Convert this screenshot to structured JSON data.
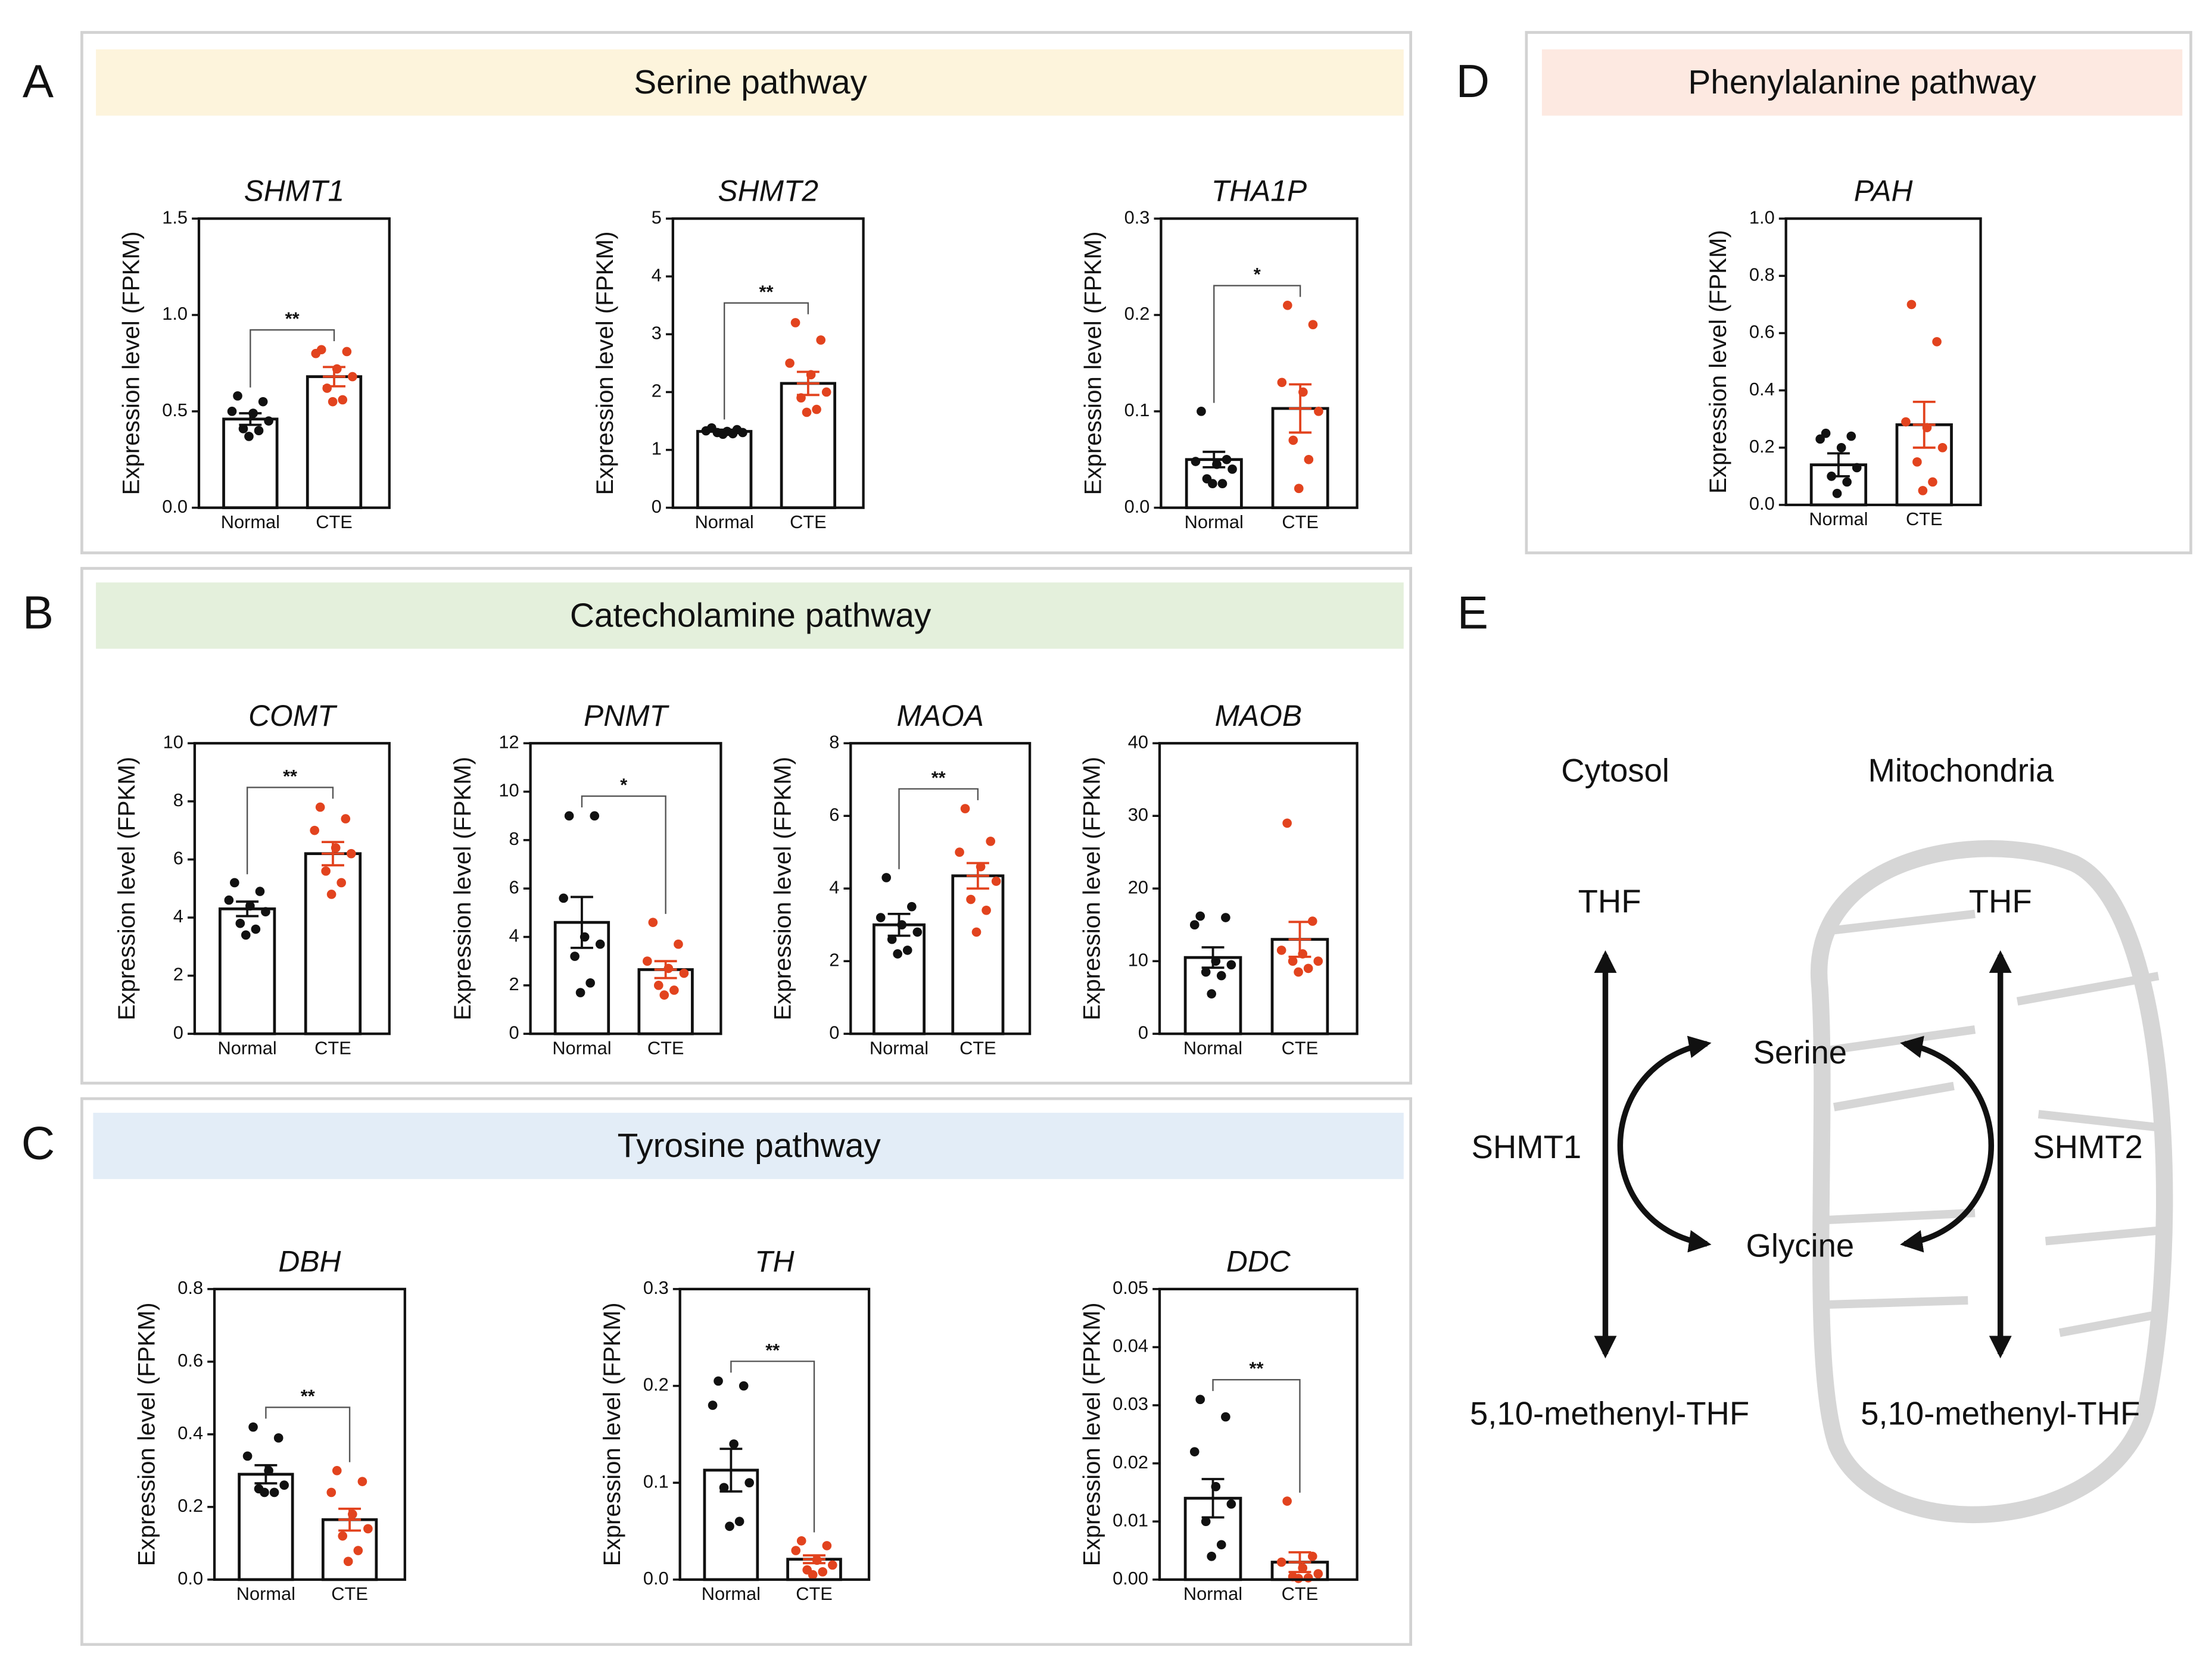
{
  "panels": [
    {
      "letter": "A",
      "header": "Serine pathway"
    },
    {
      "letter": "B",
      "header": "Catecholamine pathway"
    },
    {
      "letter": "C",
      "header": "Tyrosine pathway"
    },
    {
      "letter": "D",
      "header": "Phenylalanine pathway"
    },
    {
      "letter": "E"
    }
  ],
  "chart_data": [
    {
      "type": "bar",
      "title": "SHMT1",
      "ylabel": "Expression level (FPKM)",
      "categories": [
        "Normal",
        "CTE"
      ],
      "colors": [
        "#111111",
        "#e2431e"
      ],
      "values": [
        0.46,
        0.68
      ],
      "errors": [
        0.03,
        0.05
      ],
      "points": [
        [
          0.58,
          0.55,
          0.5,
          0.49,
          0.45,
          0.41,
          0.4,
          0.37
        ],
        [
          0.82,
          0.81,
          0.8,
          0.72,
          0.68,
          0.62,
          0.56,
          0.55
        ]
      ],
      "significance": "**",
      "ylim": [
        0,
        1.5
      ],
      "yticks": [
        {
          "value": 0,
          "label": "0.0"
        },
        0.5,
        {
          "value": 1,
          "label": "1.0"
        },
        1.5
      ]
    },
    {
      "type": "bar",
      "title": "SHMT2",
      "ylabel": "Expression level (FPKM)",
      "categories": [
        "Normal",
        "CTE"
      ],
      "colors": [
        "#111111",
        "#e2431e"
      ],
      "values": [
        1.32,
        2.15
      ],
      "errors": [
        0.03,
        0.2
      ],
      "points": [
        [
          1.38,
          1.35,
          1.33,
          1.32,
          1.3,
          1.3,
          1.28,
          1.27
        ],
        [
          3.2,
          2.9,
          2.5,
          2.3,
          2.0,
          1.9,
          1.7,
          1.65
        ]
      ],
      "significance": "**",
      "ylim": [
        0,
        5
      ],
      "yticks": [
        0,
        1,
        2,
        3,
        4,
        5
      ]
    },
    {
      "type": "bar",
      "title": "THA1P",
      "ylabel": "Expression level (FPKM)",
      "categories": [
        "Normal",
        "CTE"
      ],
      "colors": [
        "#111111",
        "#e2431e"
      ],
      "values": [
        0.05,
        0.103
      ],
      "errors": [
        0.008,
        0.025
      ],
      "points": [
        [
          0.1,
          0.05,
          0.048,
          0.045,
          0.04,
          0.03,
          0.025,
          0.025
        ],
        [
          0.21,
          0.19,
          0.13,
          0.12,
          0.1,
          0.07,
          0.05,
          0.02
        ]
      ],
      "significance": "*",
      "ylim": [
        0,
        0.3
      ],
      "yticks": [
        {
          "value": 0,
          "label": "0.0"
        },
        0.1,
        0.2,
        0.3
      ]
    },
    {
      "type": "bar",
      "title": "PAH",
      "ylabel": "Expression level (FPKM)",
      "categories": [
        "Normal",
        "CTE"
      ],
      "colors": [
        "#111111",
        "#e2431e"
      ],
      "values": [
        0.14,
        0.28
      ],
      "errors": [
        0.04,
        0.08
      ],
      "points": [
        [
          0.25,
          0.24,
          0.23,
          0.2,
          0.13,
          0.1,
          0.08,
          0.04
        ],
        [
          0.7,
          0.57,
          0.29,
          0.27,
          0.2,
          0.15,
          0.08,
          0.05
        ]
      ],
      "ylim": [
        0,
        1
      ],
      "yticks": [
        {
          "value": 0,
          "label": "0.0"
        },
        0.2,
        0.4,
        0.6,
        0.8,
        {
          "value": 1,
          "label": "1.0"
        }
      ]
    },
    {
      "type": "bar",
      "title": "COMT",
      "ylabel": "Expression level (FPKM)",
      "categories": [
        "Normal",
        "CTE"
      ],
      "colors": [
        "#111111",
        "#e2431e"
      ],
      "values": [
        4.3,
        6.2
      ],
      "errors": [
        0.25,
        0.4
      ],
      "points": [
        [
          5.2,
          4.9,
          4.6,
          4.4,
          4.2,
          3.8,
          3.6,
          3.4
        ],
        [
          7.8,
          7.4,
          7.0,
          6.4,
          6.2,
          5.6,
          5.2,
          4.8
        ]
      ],
      "significance": "**",
      "ylim": [
        0,
        10
      ],
      "yticks": [
        0,
        2,
        4,
        6,
        8,
        10
      ]
    },
    {
      "type": "bar",
      "title": "PNMT",
      "ylabel": "Expression level (FPKM)",
      "categories": [
        "Normal",
        "CTE"
      ],
      "colors": [
        "#111111",
        "#e2431e"
      ],
      "values": [
        4.6,
        2.65
      ],
      "errors": [
        1.05,
        0.35
      ],
      "points": [
        [
          9.0,
          9.0,
          5.6,
          4.0,
          3.7,
          3.2,
          2.1,
          1.7
        ],
        [
          4.6,
          3.7,
          3.0,
          2.7,
          2.5,
          2.0,
          1.8,
          1.6
        ]
      ],
      "significance": "*",
      "ylim": [
        0,
        12
      ],
      "yticks": [
        0,
        2,
        4,
        6,
        8,
        10,
        12
      ]
    },
    {
      "type": "bar",
      "title": "MAOA",
      "ylabel": "Expression level (FPKM)",
      "categories": [
        "Normal",
        "CTE"
      ],
      "colors": [
        "#111111",
        "#e2431e"
      ],
      "values": [
        3.0,
        4.35
      ],
      "errors": [
        0.3,
        0.35
      ],
      "points": [
        [
          4.3,
          3.5,
          3.2,
          3.0,
          2.8,
          2.6,
          2.3,
          2.2
        ],
        [
          6.2,
          5.3,
          5.0,
          4.6,
          4.2,
          3.7,
          3.4,
          2.8
        ]
      ],
      "significance": "**",
      "ylim": [
        0,
        8
      ],
      "yticks": [
        0,
        2,
        4,
        6,
        8
      ]
    },
    {
      "type": "bar",
      "title": "MAOB",
      "ylabel": "Expression level (FPKM)",
      "categories": [
        "Normal",
        "CTE"
      ],
      "colors": [
        "#111111",
        "#e2431e"
      ],
      "values": [
        10.5,
        13
      ],
      "errors": [
        1.4,
        2.4
      ],
      "points": [
        [
          16.2,
          16,
          15,
          10,
          9.5,
          8.5,
          8,
          5.5
        ],
        [
          29,
          15.5,
          11.5,
          11,
          10,
          10,
          9,
          8.5
        ]
      ],
      "ylim": [
        0,
        40
      ],
      "yticks": [
        0,
        10,
        20,
        30,
        40
      ]
    },
    {
      "type": "bar",
      "title": "DBH",
      "ylabel": "Expression level (FPKM)",
      "categories": [
        "Normal",
        "CTE"
      ],
      "colors": [
        "#111111",
        "#e2431e"
      ],
      "values": [
        0.29,
        0.165
      ],
      "errors": [
        0.025,
        0.03
      ],
      "points": [
        [
          0.42,
          0.39,
          0.34,
          0.3,
          0.26,
          0.25,
          0.24,
          0.24
        ],
        [
          0.3,
          0.27,
          0.24,
          0.18,
          0.14,
          0.12,
          0.08,
          0.05
        ]
      ],
      "significance": "**",
      "ylim": [
        0,
        0.8
      ],
      "yticks": [
        {
          "value": 0,
          "label": "0.0"
        },
        0.2,
        0.4,
        0.6,
        0.8
      ]
    },
    {
      "type": "bar",
      "title": "TH",
      "ylabel": "Expression level (FPKM)",
      "categories": [
        "Normal",
        "CTE"
      ],
      "colors": [
        "#111111",
        "#e2431e"
      ],
      "values": [
        0.113,
        0.021
      ],
      "errors": [
        0.022,
        0.004
      ],
      "points": [
        [
          0.205,
          0.2,
          0.18,
          0.14,
          0.1,
          0.095,
          0.06,
          0.055
        ],
        [
          0.04,
          0.035,
          0.03,
          0.02,
          0.015,
          0.01,
          0.008,
          0.005
        ]
      ],
      "significance": "**",
      "ylim": [
        0,
        0.3
      ],
      "yticks": [
        {
          "value": 0,
          "label": "0.0"
        },
        0.1,
        0.2,
        0.3
      ]
    },
    {
      "type": "bar",
      "title": "DDC",
      "ylabel": "Expression level (FPKM)",
      "categories": [
        "Normal",
        "CTE"
      ],
      "colors": [
        "#111111",
        "#e2431e"
      ],
      "values": [
        0.014,
        0.003
      ],
      "errors": [
        0.0033,
        0.0017
      ],
      "points": [
        [
          0.031,
          0.028,
          0.022,
          0.016,
          0.013,
          0.01,
          0.006,
          0.004
        ],
        [
          0.0135,
          0.004,
          0.003,
          0.002,
          0.001,
          0.0005,
          0.0003,
          0.0002
        ]
      ],
      "significance": "**",
      "ylim": [
        0,
        0.05
      ],
      "yticks": [
        {
          "value": 0,
          "label": "0.00"
        },
        0.01,
        0.02,
        0.03,
        0.04,
        0.05
      ]
    }
  ],
  "diagram": {
    "compartments": [
      "Cytosol",
      "Mitochondria"
    ],
    "nodes": [
      "THF",
      "THF",
      "Serine",
      "Glycine",
      "5,10-methenyl-THF",
      "5,10-methenyl-THF"
    ],
    "enzymes": [
      "SHMT1",
      "SHMT2"
    ]
  }
}
